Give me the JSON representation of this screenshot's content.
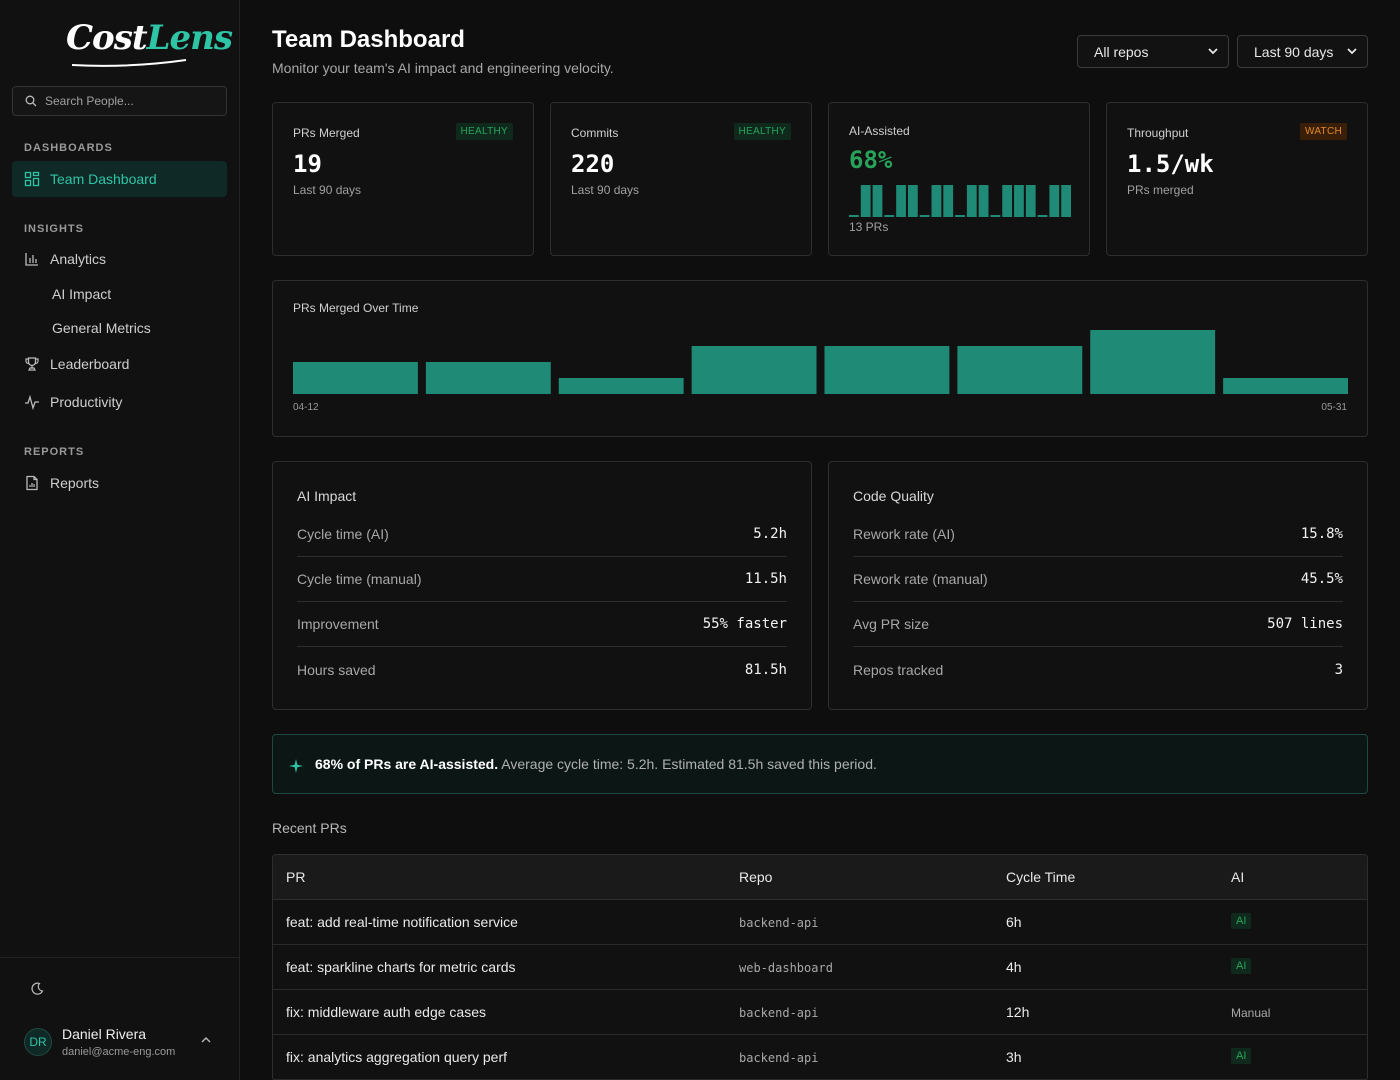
{
  "brand": {
    "logo_word1": "Cost",
    "logo_word2": "Lens"
  },
  "sidebar": {
    "search_placeholder": "Search People...",
    "sections": {
      "dashboards": "DASHBOARDS",
      "insights": "INSIGHTS",
      "reports": "REPORTS"
    },
    "items": {
      "team_dashboard": "Team Dashboard",
      "analytics": "Analytics",
      "ai_impact": "AI Impact",
      "general_metrics": "General Metrics",
      "leaderboard": "Leaderboard",
      "productivity": "Productivity",
      "reports": "Reports"
    },
    "user": {
      "initials": "DR",
      "name": "Daniel Rivera",
      "email": "daniel@acme-eng.com"
    }
  },
  "header": {
    "title": "Team Dashboard",
    "subtitle": "Monitor your team's AI impact and engineering velocity.",
    "repo_select": {
      "value": "All repos",
      "options": [
        "All repos"
      ]
    },
    "range_select": {
      "value": "Last 90 days",
      "options": [
        "Last 90 days"
      ]
    }
  },
  "kpis": [
    {
      "label": "PRs Merged",
      "value": "19",
      "sub": "Last 90 days",
      "badge": "HEALTHY"
    },
    {
      "label": "Commits",
      "value": "220",
      "sub": "Last 90 days",
      "badge": "HEALTHY"
    },
    {
      "label": "AI-Assisted",
      "value": "68%",
      "sub": "13 PRs",
      "sparkline": [
        0,
        1,
        1,
        0,
        1,
        1,
        0,
        1,
        1,
        0,
        1,
        1,
        0,
        1,
        1,
        1,
        0,
        1,
        1
      ],
      "accent": "#27a35a"
    },
    {
      "label": "Throughput",
      "value": "1.5/wk",
      "sub": "PRs merged",
      "badge": "WATCH"
    }
  ],
  "chart_data": {
    "type": "bar",
    "title": "PRs Merged Over Time",
    "x_start_label": "04-12",
    "x_end_label": "05-31",
    "values": [
      2,
      2,
      1,
      3,
      3,
      3,
      4,
      1
    ],
    "color": "#1f8a76"
  },
  "ai_impact": {
    "title": "AI Impact",
    "rows": [
      {
        "name": "Cycle time (AI)",
        "value": "5.2h"
      },
      {
        "name": "Cycle time (manual)",
        "value": "11.5h"
      },
      {
        "name": "Improvement",
        "value": "55% faster"
      },
      {
        "name": "Hours saved",
        "value": "81.5h"
      }
    ]
  },
  "code_quality": {
    "title": "Code Quality",
    "rows": [
      {
        "name": "Rework rate (AI)",
        "value": "15.8%"
      },
      {
        "name": "Rework rate (manual)",
        "value": "45.5%"
      },
      {
        "name": "Avg PR size",
        "value": "507 lines"
      },
      {
        "name": "Repos tracked",
        "value": "3"
      }
    ]
  },
  "banner": {
    "strong": "68% of PRs are AI-assisted.",
    "rest": "Average cycle time: 5.2h. Estimated 81.5h saved this period."
  },
  "recent_prs": {
    "label": "Recent PRs",
    "columns": [
      "PR",
      "Repo",
      "Cycle Time",
      "AI"
    ],
    "rows": [
      {
        "pr": "feat: add real-time notification service",
        "repo": "backend-api",
        "cycle": "6h",
        "ai": "AI"
      },
      {
        "pr": "feat: sparkline charts for metric cards",
        "repo": "web-dashboard",
        "cycle": "4h",
        "ai": "AI"
      },
      {
        "pr": "fix: middleware auth edge cases",
        "repo": "backend-api",
        "cycle": "12h",
        "ai": "Manual"
      },
      {
        "pr": "fix: analytics aggregation query perf",
        "repo": "backend-api",
        "cycle": "3h",
        "ai": "AI"
      }
    ]
  }
}
